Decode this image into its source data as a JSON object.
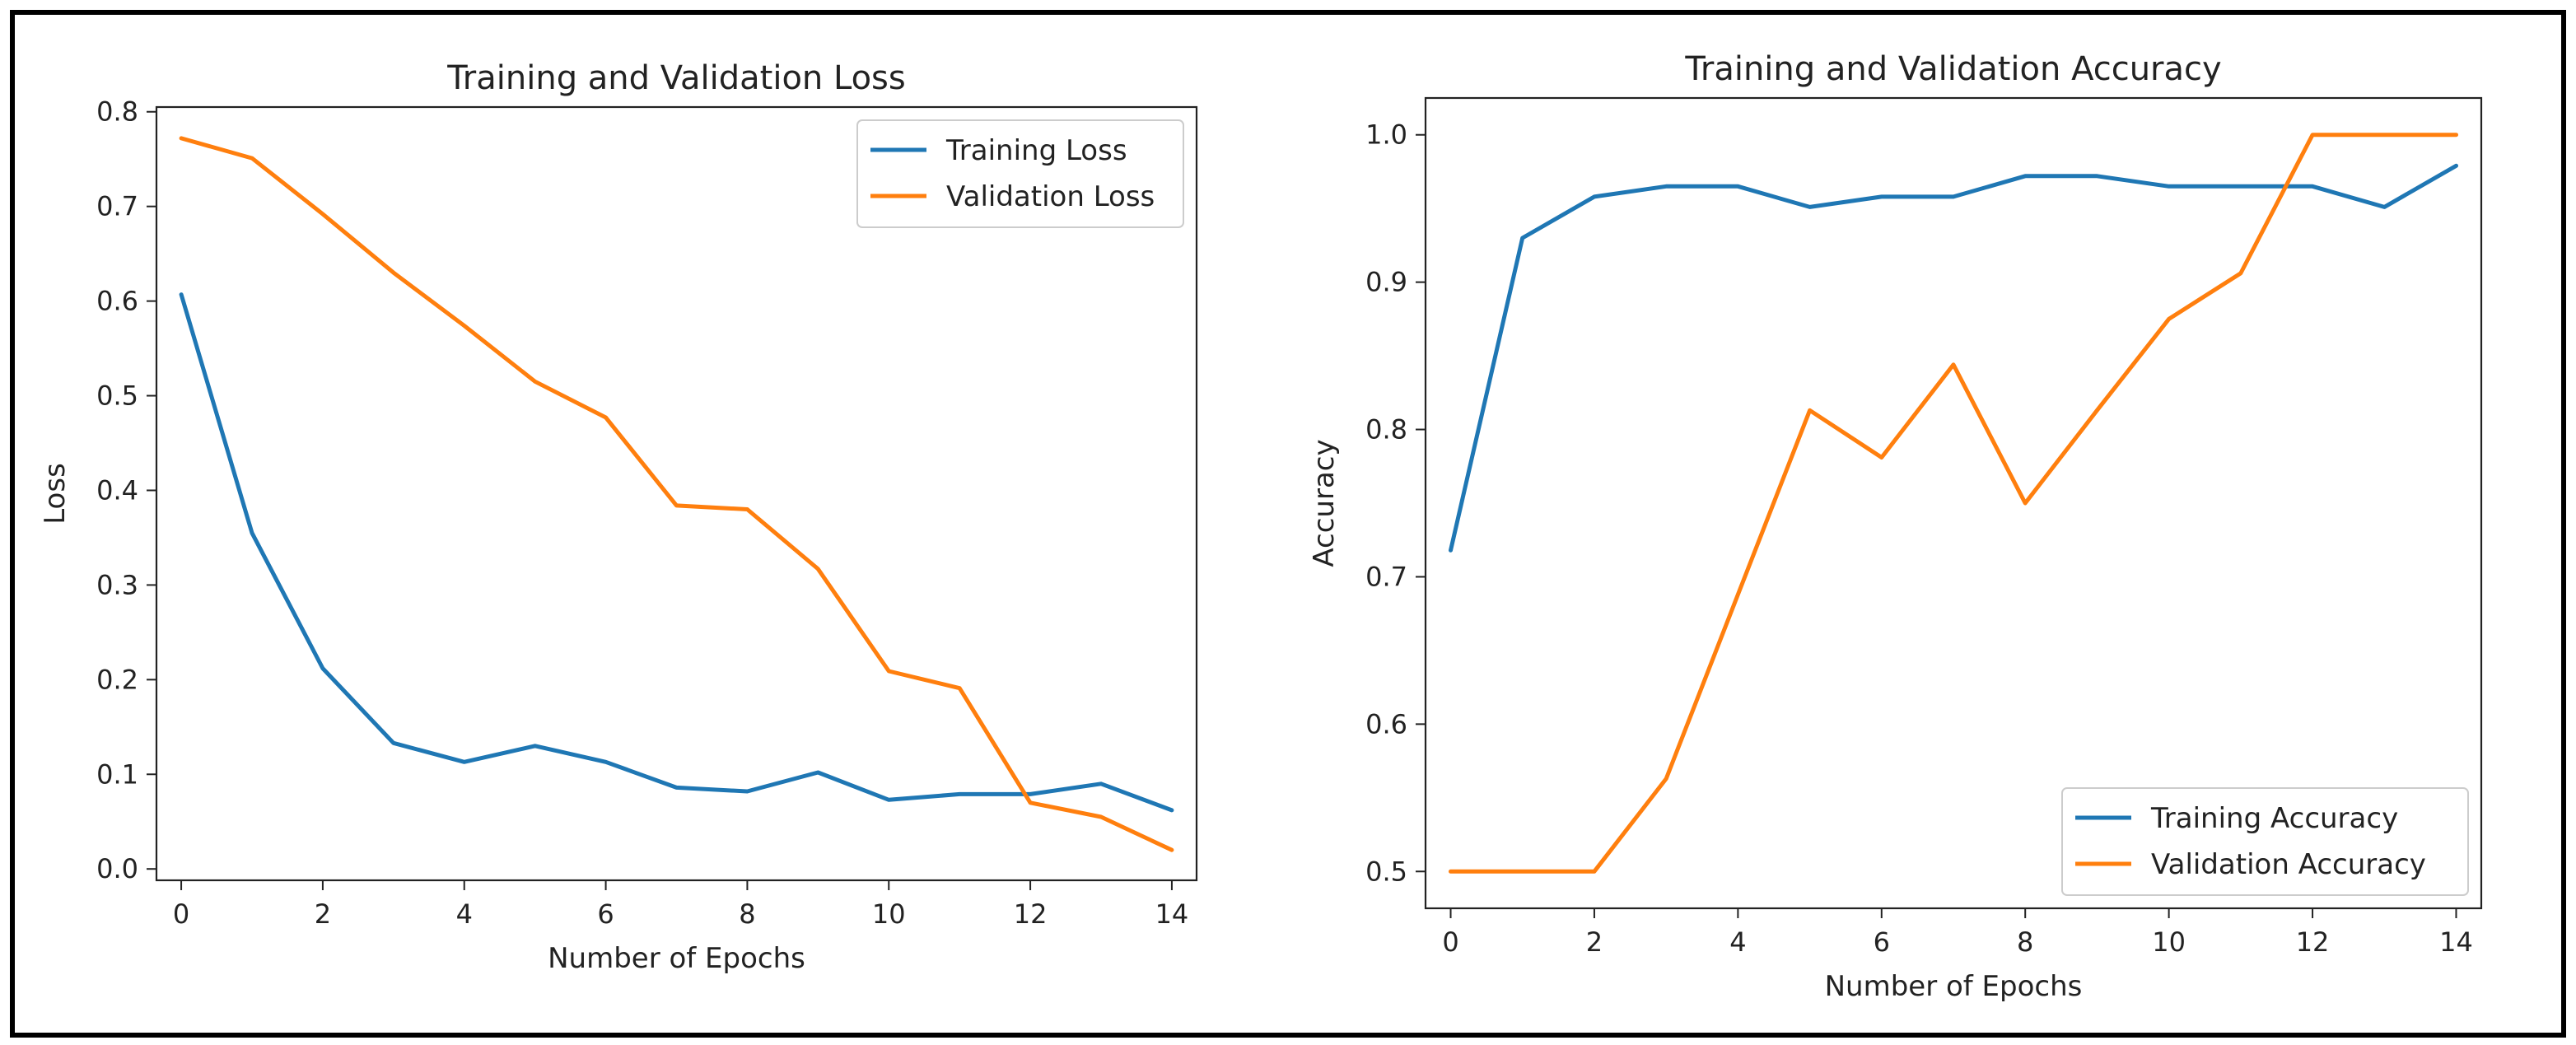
{
  "chart_data": [
    {
      "type": "line",
      "title": "Training and Validation Loss",
      "xlabel": "Number of Epochs",
      "ylabel": "Loss",
      "x": [
        0,
        1,
        2,
        3,
        4,
        5,
        6,
        7,
        8,
        9,
        10,
        11,
        12,
        13,
        14
      ],
      "xlim": [
        -0.35,
        14.35
      ],
      "ylim": [
        -0.012,
        0.805
      ],
      "xticks": [
        0,
        2,
        4,
        6,
        8,
        10,
        12,
        14
      ],
      "xtick_labels": [
        "0",
        "2",
        "4",
        "6",
        "8",
        "10",
        "12",
        "14"
      ],
      "yticks": [
        0.0,
        0.1,
        0.2,
        0.3,
        0.4,
        0.5,
        0.6,
        0.7,
        0.8
      ],
      "ytick_labels": [
        "0.0",
        "0.1",
        "0.2",
        "0.3",
        "0.4",
        "0.5",
        "0.6",
        "0.7",
        "0.8"
      ],
      "legend_position": "top-right",
      "series": [
        {
          "name": "Training Loss",
          "color": "#1f77b4",
          "values": [
            0.607,
            0.355,
            0.212,
            0.133,
            0.113,
            0.13,
            0.113,
            0.086,
            0.082,
            0.102,
            0.073,
            0.079,
            0.079,
            0.09,
            0.062
          ]
        },
        {
          "name": "Validation Loss",
          "color": "#ff7f0e",
          "values": [
            0.772,
            0.751,
            0.692,
            0.63,
            0.574,
            0.515,
            0.477,
            0.384,
            0.38,
            0.317,
            0.209,
            0.191,
            0.07,
            0.055,
            0.02
          ]
        }
      ]
    },
    {
      "type": "line",
      "title": "Training and Validation Accuracy",
      "xlabel": "Number of Epochs",
      "ylabel": "Accuracy",
      "x": [
        0,
        1,
        2,
        3,
        4,
        5,
        6,
        7,
        8,
        9,
        10,
        11,
        12,
        13,
        14
      ],
      "xlim": [
        -0.35,
        14.35
      ],
      "ylim": [
        0.475,
        1.025
      ],
      "xticks": [
        0,
        2,
        4,
        6,
        8,
        10,
        12,
        14
      ],
      "xtick_labels": [
        "0",
        "2",
        "4",
        "6",
        "8",
        "10",
        "12",
        "14"
      ],
      "yticks": [
        0.5,
        0.6,
        0.7,
        0.8,
        0.9,
        1.0
      ],
      "ytick_labels": [
        "0.5",
        "0.6",
        "0.7",
        "0.8",
        "0.9",
        "1.0"
      ],
      "legend_position": "bottom-right",
      "series": [
        {
          "name": "Training Accuracy",
          "color": "#1f77b4",
          "values": [
            0.718,
            0.93,
            0.958,
            0.965,
            0.965,
            0.951,
            0.958,
            0.958,
            0.972,
            0.972,
            0.965,
            0.965,
            0.965,
            0.951,
            0.979
          ]
        },
        {
          "name": "Validation Accuracy",
          "color": "#ff7f0e",
          "values": [
            0.5,
            0.5,
            0.5,
            0.563,
            0.688,
            0.813,
            0.781,
            0.844,
            0.75,
            0.813,
            0.875,
            0.906,
            1.0,
            1.0,
            1.0
          ]
        }
      ]
    }
  ]
}
